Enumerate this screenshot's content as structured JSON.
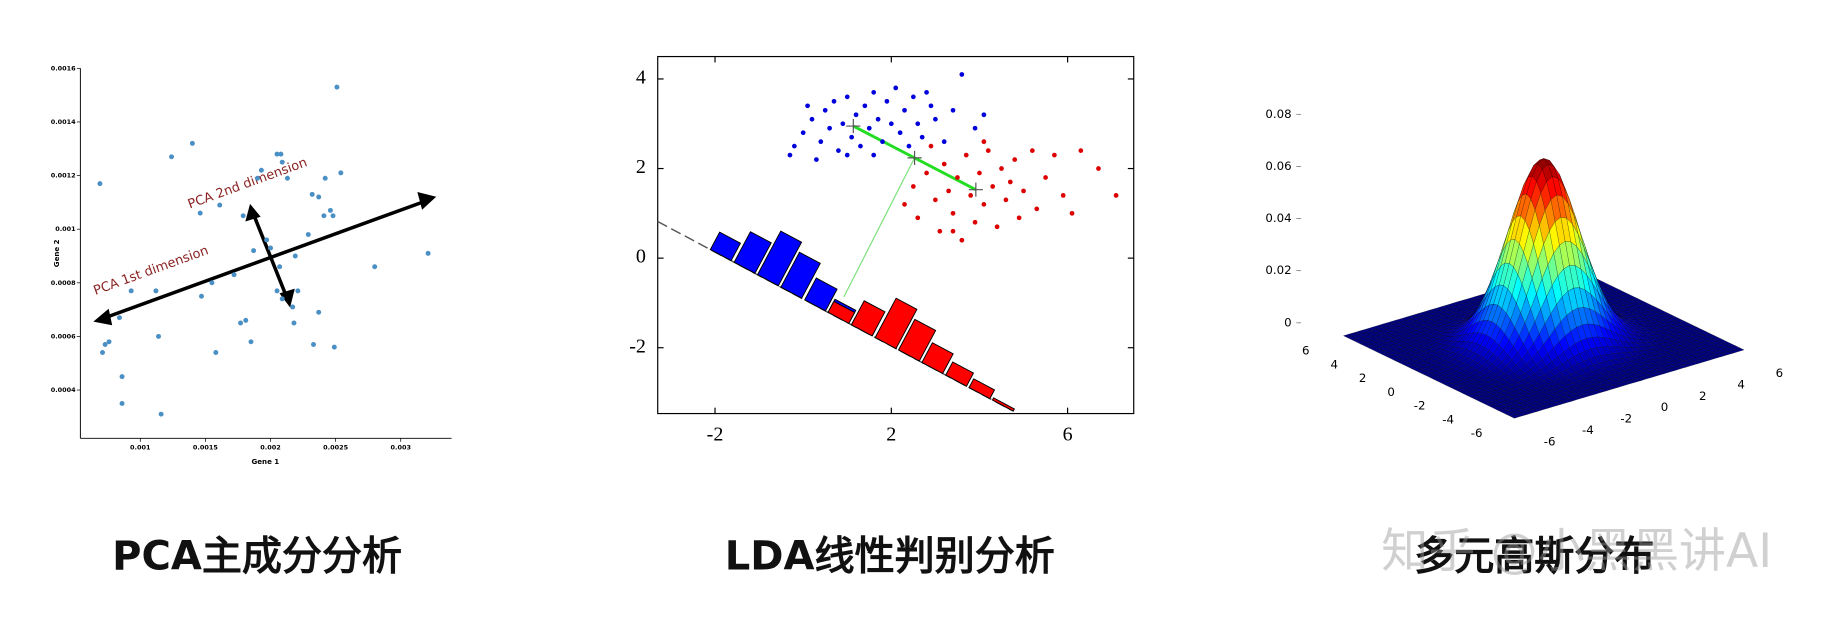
{
  "chart_data": [
    {
      "type": "scatter",
      "caption": "PCA主成分分析",
      "x_label": "Gene 1",
      "y_label": "Gene 2",
      "annotations": [
        "PCA 1st dimension",
        "PCA 2nd dimension"
      ],
      "color": "#4a90c4",
      "x": [
        0.00069,
        0.00071,
        0.00073,
        0.00076,
        0.00086,
        0.00084,
        0.00086,
        0.00093,
        0.00112,
        0.00116,
        0.00114,
        0.00124,
        0.0014,
        0.00146,
        0.00147,
        0.00158,
        0.00155,
        0.00161,
        0.00172,
        0.00177,
        0.00181,
        0.00185,
        0.00179,
        0.00187,
        0.0019,
        0.00193,
        0.00197,
        0.002,
        0.00205,
        0.00208,
        0.00209,
        0.00205,
        0.00207,
        0.00209,
        0.00213,
        0.00219,
        0.00221,
        0.00229,
        0.00232,
        0.00233,
        0.00237,
        0.00237,
        0.00241,
        0.00242,
        0.00246,
        0.00248,
        0.00249,
        0.00251,
        0.00254,
        0.0028,
        0.00321,
        0.00217,
        0.00218
      ],
      "values": [
        0.00117,
        0.00054,
        0.00057,
        0.00058,
        0.00045,
        0.00067,
        0.00035,
        0.00077,
        0.00077,
        0.00031,
        0.0006,
        0.00127,
        0.00132,
        0.00106,
        0.00075,
        0.00054,
        0.0008,
        0.00109,
        0.00083,
        0.00065,
        0.00066,
        0.00058,
        0.00105,
        0.00092,
        0.00119,
        0.00122,
        0.00096,
        0.00093,
        0.00128,
        0.00128,
        0.00125,
        0.00077,
        0.00086,
        0.00074,
        0.00119,
        0.0009,
        0.00077,
        0.00098,
        0.00113,
        0.00057,
        0.00112,
        0.00069,
        0.00105,
        0.00119,
        0.00107,
        0.00105,
        0.00056,
        0.00153,
        0.00121,
        0.00086,
        0.00091,
        0.00071,
        0.00065
      ],
      "xlim": [
        0.00054,
        0.00339
      ],
      "ylim": [
        0.00022,
        0.0016
      ],
      "xticks": [
        0.001,
        0.0015,
        0.002,
        0.0025,
        0.003
      ],
      "yticks": [
        0.0004,
        0.0006,
        0.0008,
        0.001,
        0.0012,
        0.0014,
        0.0016
      ]
    },
    {
      "type": "projection",
      "caption": "LDA线性判别分析",
      "series": [
        {
          "color": "#0000dd",
          "x": [
            -0.3,
            -0.2,
            0.0,
            0.2,
            0.4,
            0.5,
            0.6,
            0.7,
            0.8,
            0.9,
            1.0,
            1.1,
            1.2,
            1.3,
            1.4,
            1.5,
            1.6,
            1.7,
            1.8,
            1.9,
            2.0,
            2.1,
            2.2,
            2.3,
            2.4,
            2.5,
            2.6,
            2.7,
            2.9,
            3.0,
            3.2,
            3.4,
            3.6,
            3.9,
            4.1,
            0.1,
            0.3,
            1.0,
            1.6,
            2.8
          ],
          "values": [
            2.3,
            2.5,
            2.8,
            3.1,
            2.6,
            3.3,
            2.9,
            3.5,
            2.4,
            3.0,
            3.6,
            2.7,
            3.2,
            2.5,
            3.4,
            2.9,
            3.7,
            3.1,
            2.6,
            3.5,
            3.0,
            3.8,
            2.8,
            3.3,
            2.5,
            3.6,
            3.0,
            2.7,
            3.4,
            3.1,
            2.6,
            3.3,
            4.1,
            2.9,
            3.2,
            3.4,
            2.2,
            2.3,
            2.3,
            3.7
          ]
        },
        {
          "color": "#dd0000",
          "x": [
            2.3,
            2.5,
            2.6,
            2.8,
            3.0,
            3.1,
            3.2,
            3.3,
            3.4,
            3.5,
            3.6,
            3.7,
            3.8,
            3.9,
            4.0,
            4.1,
            4.2,
            4.3,
            4.4,
            4.5,
            4.6,
            4.7,
            4.8,
            4.9,
            5.0,
            5.2,
            5.3,
            5.5,
            5.7,
            5.9,
            6.1,
            6.3,
            2.9,
            3.4,
            4.1,
            7.1,
            6.7
          ],
          "values": [
            1.2,
            1.6,
            0.9,
            1.9,
            1.3,
            0.6,
            2.1,
            1.5,
            1.0,
            1.8,
            0.4,
            2.3,
            1.4,
            0.8,
            1.9,
            1.2,
            2.4,
            1.6,
            0.7,
            2.0,
            1.3,
            1.7,
            2.2,
            0.9,
            1.5,
            2.4,
            1.1,
            1.8,
            2.3,
            1.4,
            1.0,
            2.4,
            2.5,
            0.6,
            2.6,
            1.4,
            2.0
          ]
        }
      ],
      "histogram": {
        "bin_centers": [
          -1.87,
          -1.33,
          -0.8,
          -0.27,
          0.27,
          0.8,
          1.33,
          1.87,
          2.4,
          2.93,
          3.47,
          4.0,
          4.53
        ],
        "series": [
          {
            "color": "#0000ff",
            "values": [
              4,
              7,
              10,
              8,
              5,
              3,
              1.5,
              0,
              0,
              0,
              0,
              0,
              0
            ]
          },
          {
            "color": "#ff0000",
            "values": [
              0,
              0,
              0,
              0,
              0,
              2.5,
              5.5,
              9,
              7,
              4.5,
              3,
              2,
              0.5
            ]
          }
        ]
      },
      "xlim": [
        -3.3,
        7.5
      ],
      "ylim": [
        -3.47,
        4.5
      ],
      "xticks": [
        -2,
        2,
        6
      ],
      "yticks": [
        -2,
        0,
        2,
        4
      ]
    },
    {
      "type": "surface",
      "caption": "多元高斯分布",
      "mean": [
        0,
        0
      ],
      "std": [
        1.5,
        1.5
      ],
      "xlim": [
        -6,
        6
      ],
      "ylim": [
        -6,
        6
      ],
      "zlim": [
        0,
        0.08
      ],
      "xticks": [
        -6,
        -4,
        -2,
        0,
        2,
        4,
        6
      ],
      "yticks": [
        -6,
        -4,
        -2,
        0,
        2,
        4,
        6
      ],
      "zticks": [
        0,
        0.02,
        0.04,
        0.06,
        0.08
      ]
    }
  ],
  "watermark": "知乎 @小黑黑讲AI"
}
